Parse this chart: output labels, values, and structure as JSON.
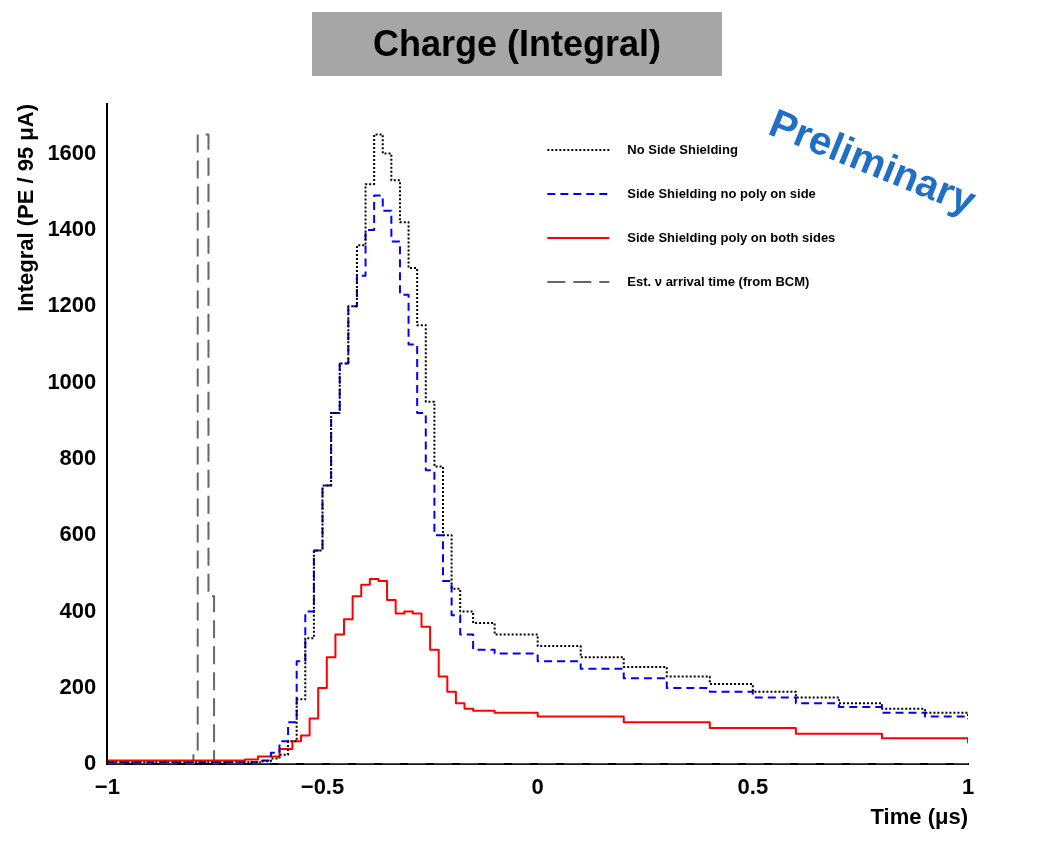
{
  "chart_data": {
    "type": "step",
    "title": "Charge (Integral)",
    "xlabel": "Time (μs)",
    "ylabel": "Integral (PE / 95 μA)",
    "xlim": [
      -1,
      1
    ],
    "xticks": [
      {
        "value": -1,
        "label": "−1"
      },
      {
        "value": -0.5,
        "label": "−0.5"
      },
      0,
      0.5,
      1
    ],
    "ylim": [
      0,
      1730
    ],
    "yticks": [
      0,
      200,
      400,
      600,
      800,
      1000,
      1200,
      1400,
      1600
    ],
    "grid": false,
    "legend": "top right",
    "marker": "none",
    "annotations": [
      "Preliminary"
    ],
    "series": [
      {
        "name": "No Side Shielding",
        "color": "#000000",
        "line_style": "dotted",
        "x": [
          -1,
          -0.64,
          -0.62,
          -0.6,
          -0.58,
          -0.56,
          -0.54,
          -0.52,
          -0.5,
          -0.48,
          -0.46,
          -0.44,
          -0.42,
          -0.4,
          -0.38,
          -0.36,
          -0.34,
          -0.32,
          -0.3,
          -0.28,
          -0.26,
          -0.24,
          -0.22,
          -0.2,
          -0.18,
          -0.15,
          -0.1,
          0,
          0.1,
          0.2,
          0.3,
          0.4,
          0.5,
          0.6,
          0.7,
          0.8,
          0.9,
          1
        ],
        "values": [
          5,
          8,
          15,
          25,
          60,
          170,
          330,
          560,
          730,
          920,
          1050,
          1200,
          1360,
          1520,
          1650,
          1600,
          1530,
          1420,
          1300,
          1150,
          950,
          780,
          600,
          460,
          400,
          370,
          340,
          310,
          280,
          255,
          230,
          210,
          190,
          175,
          160,
          145,
          135,
          125
        ]
      },
      {
        "name": "Side Shielding no poly on side",
        "color": "#0000ff",
        "line_style": "dashed",
        "x": [
          -1,
          -0.64,
          -0.62,
          -0.6,
          -0.58,
          -0.56,
          -0.54,
          -0.52,
          -0.5,
          -0.48,
          -0.46,
          -0.44,
          -0.42,
          -0.4,
          -0.38,
          -0.36,
          -0.34,
          -0.32,
          -0.3,
          -0.28,
          -0.26,
          -0.24,
          -0.22,
          -0.2,
          -0.18,
          -0.15,
          -0.1,
          0,
          0.1,
          0.2,
          0.3,
          0.4,
          0.5,
          0.6,
          0.7,
          0.8,
          0.9,
          1
        ],
        "values": [
          5,
          10,
          30,
          60,
          110,
          270,
          400,
          560,
          730,
          920,
          1050,
          1200,
          1280,
          1400,
          1490,
          1450,
          1370,
          1230,
          1100,
          920,
          770,
          600,
          480,
          390,
          340,
          300,
          290,
          270,
          250,
          225,
          200,
          190,
          175,
          160,
          150,
          135,
          125,
          118
        ]
      },
      {
        "name": "Side Shielding poly on both sides",
        "color": "#ff0000",
        "line_style": "solid",
        "x": [
          -1,
          -0.68,
          -0.65,
          -0.6,
          -0.57,
          -0.55,
          -0.53,
          -0.51,
          -0.49,
          -0.47,
          -0.45,
          -0.43,
          -0.41,
          -0.39,
          -0.37,
          -0.35,
          -0.33,
          -0.31,
          -0.29,
          -0.27,
          -0.25,
          -0.23,
          -0.21,
          -0.19,
          -0.17,
          -0.15,
          -0.1,
          0,
          0.2,
          0.4,
          0.6,
          0.8,
          1
        ],
        "values": [
          10,
          12,
          20,
          40,
          60,
          75,
          120,
          200,
          280,
          340,
          380,
          440,
          470,
          485,
          480,
          430,
          395,
          400,
          395,
          360,
          300,
          230,
          190,
          160,
          145,
          140,
          135,
          125,
          110,
          95,
          80,
          68,
          55
        ]
      },
      {
        "name": "Est. ν arrival time (from BCM)",
        "color": "#666666",
        "line_style": "longdash",
        "x": [
          -1,
          -0.8,
          -0.79,
          -0.765,
          -0.752,
          1
        ],
        "values": [
          0,
          30,
          1650,
          440,
          0,
          0
        ]
      }
    ]
  }
}
